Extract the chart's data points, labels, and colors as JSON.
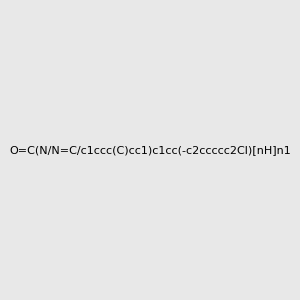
{
  "smiles": "O=C(N/N=C/c1ccc(C)cc1)c1cc(-c2ccccc2Cl)[nH]n1",
  "title": "",
  "bg_color": "#e8e8e8",
  "bond_color": "#1a1a1a",
  "atom_colors": {
    "N": "#4169e1",
    "O": "#ff0000",
    "Cl": "#228b22",
    "H_label": "#4169e1"
  },
  "figsize": [
    3.0,
    3.0
  ],
  "dpi": 100
}
